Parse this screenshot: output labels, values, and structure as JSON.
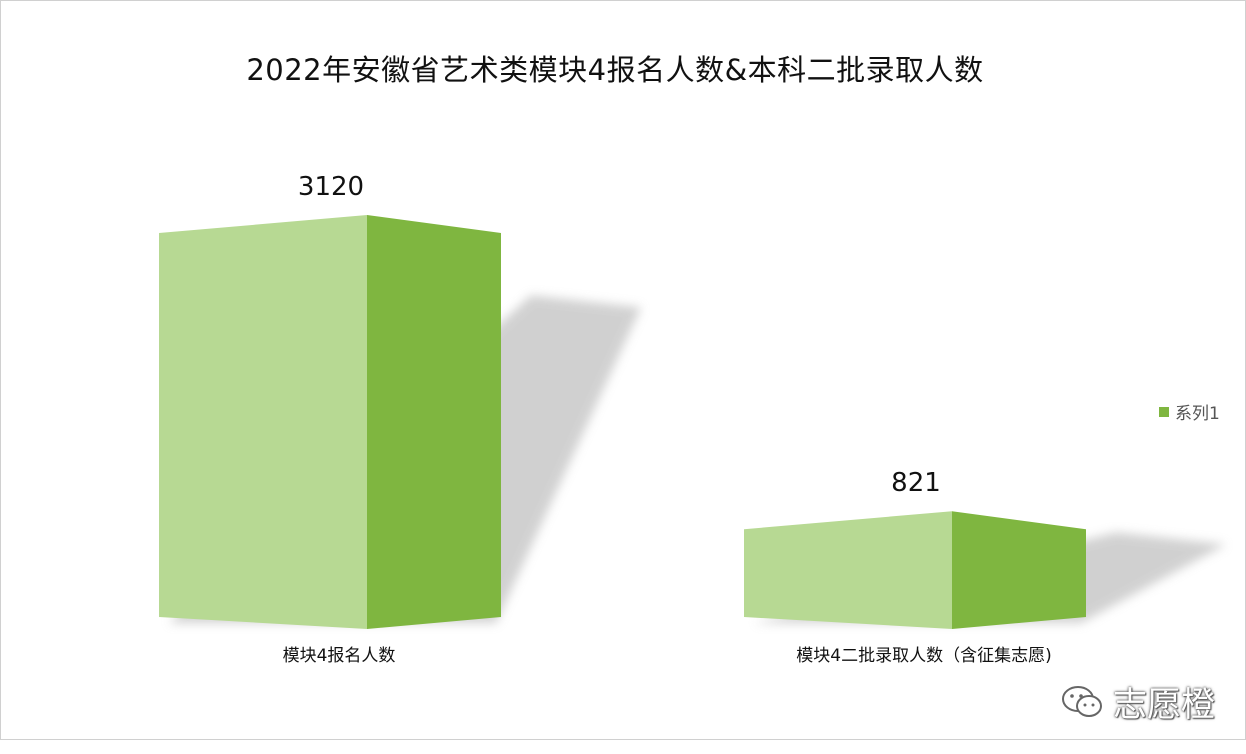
{
  "chart_data": {
    "type": "bar",
    "title": "2022年安徽省艺术类模块4报名人数&本科二批录取人数",
    "categories": [
      "模块4报名人数",
      "模块4二批录取人数（含征集志愿)"
    ],
    "series": [
      {
        "name": "系列1",
        "values": [
          3120,
          821
        ]
      }
    ],
    "data_labels": [
      "3120",
      "821"
    ],
    "legend": {
      "position": "right"
    },
    "grid": false,
    "three_d": true,
    "colors": {
      "bar_front": "#b7d993",
      "bar_side": "#7fb640",
      "shadow": "#cccccc"
    }
  },
  "watermark": {
    "text": "志愿橙",
    "icon": "wechat-icon"
  }
}
